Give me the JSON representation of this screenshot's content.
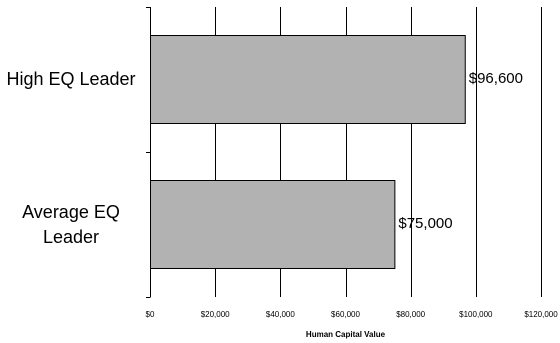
{
  "chart_data": {
    "type": "bar",
    "orientation": "horizontal",
    "categories": [
      "High EQ Leader",
      "Average EQ Leader"
    ],
    "category_label_lines": [
      [
        "High EQ Leader"
      ],
      [
        "Average EQ",
        "Leader"
      ]
    ],
    "values": [
      96600,
      75000
    ],
    "data_labels": [
      "$96,600",
      "$75,000"
    ],
    "title": "",
    "xlabel": "Human Capital Value",
    "ylabel": "",
    "xlim": [
      0,
      120000
    ],
    "xticks": [
      0,
      20000,
      40000,
      60000,
      80000,
      100000,
      120000
    ],
    "xtick_labels": [
      "$0",
      "$20,000",
      "$40,000",
      "$60,000",
      "$80,000",
      "$100,000",
      "$120,000"
    ],
    "grid": "vertical",
    "legend": "none",
    "colors": {
      "bar_fill": "#b2b2b2",
      "bar_stroke": "#000000",
      "grid": "#000000"
    }
  }
}
